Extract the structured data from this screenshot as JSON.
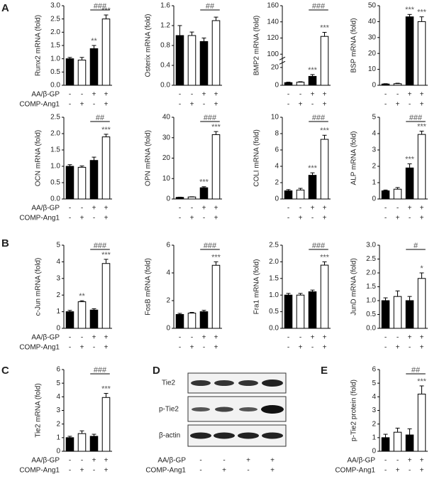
{
  "panels": [
    "A",
    "B",
    "C",
    "D",
    "E"
  ],
  "treatments": [
    {
      "name": "AA/β-GP",
      "signs": [
        "-",
        "-",
        "+",
        "+"
      ]
    },
    {
      "name": "COMP-Ang1",
      "signs": [
        "-",
        "+",
        "-",
        "+"
      ]
    }
  ],
  "blot": {
    "labels": [
      "Tie2",
      "p-Tie2",
      "β-actin"
    ]
  },
  "chart_data": [
    {
      "type": "bar",
      "ylabel": "Runx2 mRNA (fold)",
      "ylim": [
        0,
        3
      ],
      "yticks": [
        {
          "value": 0,
          "label": "0.0"
        },
        0.5,
        {
          "value": 1,
          "label": "1.0"
        },
        1.5,
        {
          "value": 2,
          "label": "2.0"
        },
        2.5,
        {
          "value": 3,
          "label": "3.0"
        }
      ],
      "values": [
        1.0,
        0.95,
        1.38,
        2.5
      ],
      "errors": [
        0.05,
        0.1,
        0.12,
        0.15
      ],
      "annotations": [
        null,
        null,
        "**",
        "***"
      ],
      "bracket": "###",
      "colors": [
        "#000000",
        "#ffffff",
        "#000000",
        "#ffffff"
      ]
    },
    {
      "type": "bar",
      "ylabel": "Osterix mRNA (fold)",
      "ylim": [
        0,
        1.6
      ],
      "yticks": [
        {
          "value": 0,
          "label": "0.0"
        },
        0.4,
        0.8,
        1.2,
        1.6
      ],
      "values": [
        1.0,
        1.0,
        0.88,
        1.3
      ],
      "errors": [
        0.2,
        0.07,
        0.07,
        0.07
      ],
      "annotations": [
        null,
        null,
        null,
        null
      ],
      "bracket": "##",
      "colors": [
        "#000000",
        "#ffffff",
        "#000000",
        "#ffffff"
      ]
    },
    {
      "type": "bar",
      "ylabel": "BMP2 mRNA (fold)",
      "ylim": [
        0,
        160
      ],
      "ybreak": [
        25,
        95
      ],
      "yticks": [
        0,
        20,
        100,
        120,
        140,
        160
      ],
      "values": [
        3,
        3.5,
        10,
        122
      ],
      "errors": [
        0.5,
        0.5,
        2,
        5
      ],
      "annotations": [
        null,
        null,
        "***",
        "***"
      ],
      "bracket": "###",
      "colors": [
        "#000000",
        "#ffffff",
        "#000000",
        "#ffffff"
      ]
    },
    {
      "type": "bar",
      "ylabel": "BSP mRNA (fold)",
      "ylim": [
        0,
        50
      ],
      "yticks": [
        0,
        10,
        20,
        30,
        40,
        50
      ],
      "values": [
        0.8,
        1,
        43,
        40
      ],
      "errors": [
        0.2,
        0.3,
        1.5,
        3
      ],
      "annotations": [
        null,
        null,
        "***",
        "***"
      ],
      "colors": [
        "#000000",
        "#ffffff",
        "#000000",
        "#ffffff"
      ]
    },
    {
      "type": "bar",
      "ylabel": "OCN mRNA (fold)",
      "ylim": [
        0,
        2.5
      ],
      "yticks": [
        {
          "value": 0,
          "label": "0.0"
        },
        0.5,
        {
          "value": 1,
          "label": "1.0"
        },
        1.5,
        {
          "value": 2,
          "label": "2.0"
        },
        2.5
      ],
      "values": [
        1.0,
        0.97,
        1.18,
        1.9
      ],
      "errors": [
        0.05,
        0.04,
        0.1,
        0.08
      ],
      "annotations": [
        null,
        null,
        null,
        "***"
      ],
      "bracket": "##",
      "colors": [
        "#000000",
        "#ffffff",
        "#000000",
        "#ffffff"
      ]
    },
    {
      "type": "bar",
      "ylabel": "OPN mRNA (fold)",
      "ylim": [
        0,
        40
      ],
      "yticks": [
        0,
        10,
        20,
        30,
        40
      ],
      "values": [
        0.8,
        1,
        5.5,
        31.5
      ],
      "errors": [
        0.1,
        0.1,
        0.5,
        1.5
      ],
      "annotations": [
        null,
        null,
        "***",
        "***"
      ],
      "bracket": "###",
      "colors": [
        "#000000",
        "#ffffff",
        "#000000",
        "#ffffff"
      ]
    },
    {
      "type": "bar",
      "ylabel": "COLI mRNA (fold)",
      "ylim": [
        0,
        10
      ],
      "yticks": [
        0,
        2,
        4,
        6,
        8,
        10
      ],
      "values": [
        1,
        1.1,
        2.9,
        7.3
      ],
      "errors": [
        0.15,
        0.2,
        0.3,
        0.5
      ],
      "annotations": [
        null,
        null,
        "***",
        "***"
      ],
      "bracket": "###",
      "colors": [
        "#000000",
        "#ffffff",
        "#000000",
        "#ffffff"
      ]
    },
    {
      "type": "bar",
      "ylabel": "ALP mRNA (fold)",
      "ylim": [
        0,
        5
      ],
      "yticks": [
        0,
        1,
        2,
        3,
        4,
        5
      ],
      "values": [
        0.5,
        0.6,
        1.9,
        3.95
      ],
      "errors": [
        0.05,
        0.1,
        0.25,
        0.2
      ],
      "annotations": [
        null,
        null,
        "***",
        "***"
      ],
      "bracket": "###",
      "colors": [
        "#000000",
        "#ffffff",
        "#000000",
        "#ffffff"
      ]
    },
    {
      "type": "bar",
      "ylabel": "c-Jun mRNA (fold)",
      "ylim": [
        0,
        5
      ],
      "yticks": [
        0,
        1,
        2,
        3,
        4,
        5
      ],
      "values": [
        1.0,
        1.6,
        1.1,
        3.9
      ],
      "errors": [
        0.08,
        0.06,
        0.08,
        0.25
      ],
      "annotations": [
        null,
        "**",
        null,
        "***"
      ],
      "bracket": "###",
      "colors": [
        "#000000",
        "#ffffff",
        "#000000",
        "#ffffff"
      ]
    },
    {
      "type": "bar",
      "ylabel": "FosB mRNA (fold)",
      "ylim": [
        0,
        6
      ],
      "yticks": [
        0,
        2,
        4,
        6
      ],
      "values": [
        1,
        1.1,
        1.2,
        4.55
      ],
      "errors": [
        0.08,
        0.05,
        0.1,
        0.25
      ],
      "annotations": [
        null,
        null,
        null,
        "***"
      ],
      "bracket": "###",
      "colors": [
        "#000000",
        "#ffffff",
        "#000000",
        "#ffffff"
      ]
    },
    {
      "type": "bar",
      "ylabel": "Fra1 mRNA (fold)",
      "ylim": [
        0,
        2.5
      ],
      "yticks": [
        {
          "value": 0,
          "label": "0.0"
        },
        0.5,
        {
          "value": 1,
          "label": "1.0"
        },
        1.5,
        {
          "value": 2,
          "label": "2.0"
        },
        2.5
      ],
      "values": [
        1,
        1,
        1.1,
        1.9
      ],
      "errors": [
        0.05,
        0.05,
        0.05,
        0.1
      ],
      "annotations": [
        null,
        null,
        null,
        "***"
      ],
      "bracket": "###",
      "colors": [
        "#000000",
        "#ffffff",
        "#000000",
        "#ffffff"
      ]
    },
    {
      "type": "bar",
      "ylabel": "JunD mRNA (fold)",
      "ylim": [
        0,
        3
      ],
      "yticks": [
        {
          "value": 0,
          "label": "0.0"
        },
        0.5,
        {
          "value": 1,
          "label": "1.0"
        },
        1.5,
        {
          "value": 2,
          "label": "2.0"
        },
        2.5,
        {
          "value": 3,
          "label": "3.0"
        }
      ],
      "values": [
        1,
        1.15,
        1,
        1.8
      ],
      "errors": [
        0.1,
        0.2,
        0.15,
        0.2
      ],
      "annotations": [
        null,
        null,
        null,
        "*"
      ],
      "bracket": "#",
      "colors": [
        "#000000",
        "#ffffff",
        "#000000",
        "#ffffff"
      ]
    },
    {
      "type": "bar",
      "ylabel": "Tie2 mRNA (fold)",
      "ylim": [
        0,
        6
      ],
      "yticks": [
        0,
        1,
        2,
        3,
        4,
        5,
        6
      ],
      "values": [
        1,
        1.3,
        1.1,
        3.95
      ],
      "errors": [
        0.1,
        0.2,
        0.15,
        0.3
      ],
      "annotations": [
        null,
        null,
        null,
        "***"
      ],
      "bracket": "###",
      "colors": [
        "#000000",
        "#ffffff",
        "#000000",
        "#ffffff"
      ]
    },
    {
      "type": "bar",
      "ylabel": "p-Tie2 protein (fold)",
      "ylim": [
        0,
        6
      ],
      "yticks": [
        0,
        1,
        2,
        3,
        4,
        5,
        6
      ],
      "values": [
        1,
        1.4,
        1.2,
        4.2
      ],
      "errors": [
        0.25,
        0.3,
        0.45,
        0.6
      ],
      "annotations": [
        null,
        null,
        null,
        "***"
      ],
      "bracket": "##",
      "colors": [
        "#000000",
        "#ffffff",
        "#000000",
        "#ffffff"
      ]
    }
  ]
}
